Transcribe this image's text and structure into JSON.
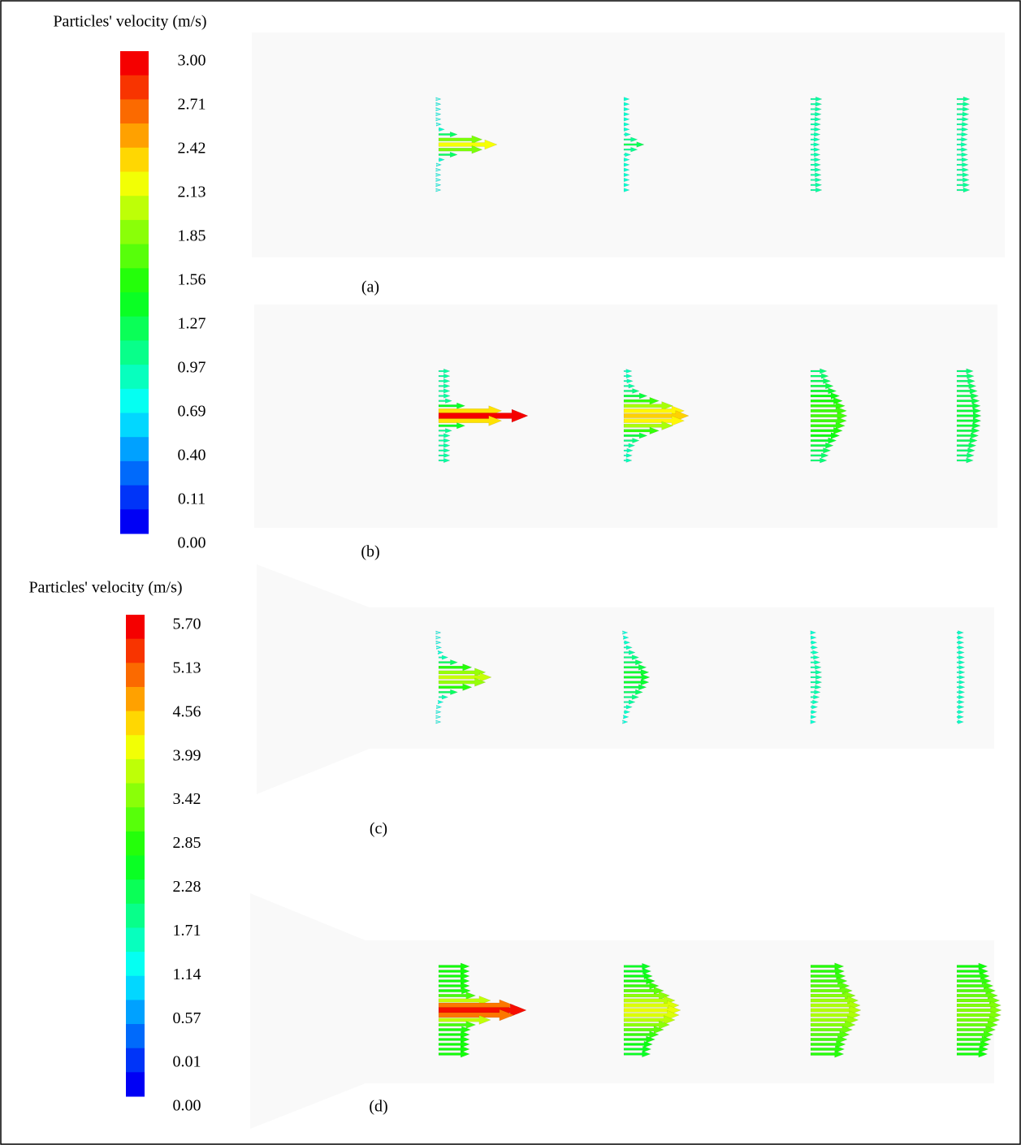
{
  "colorbars": [
    {
      "title": "Particles' velocity (m/s)",
      "ticks": [
        "3.00",
        "2.71",
        "2.42",
        "2.13",
        "1.85",
        "1.56",
        "1.27",
        "0.97",
        "0.69",
        "0.40",
        "0.11",
        "0.00"
      ]
    },
    {
      "title": "Particles' velocity (m/s)",
      "ticks": [
        "5.70",
        "5.13",
        "4.56",
        "3.99",
        "3.42",
        "2.85",
        "2.28",
        "1.71",
        "1.14",
        "0.57",
        "0.01",
        "0.00"
      ]
    }
  ],
  "panels": [
    {
      "label": "(a)"
    },
    {
      "label": "(b)"
    },
    {
      "label": "(c)"
    },
    {
      "label": "(d)"
    }
  ]
}
